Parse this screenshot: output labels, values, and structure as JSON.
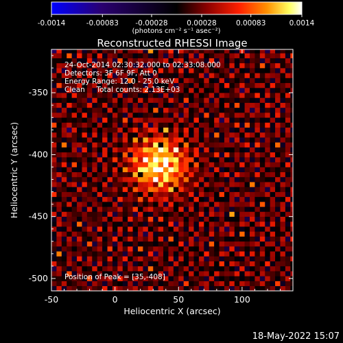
{
  "chart_data": {
    "type": "heatmap",
    "title": "Reconstructed RHESSI Image",
    "xlabel": "Heliocentric X (arcsec)",
    "ylabel": "Heliocentric Y (arcsec)",
    "xlim": [
      -50,
      140
    ],
    "ylim": [
      -510,
      -315
    ],
    "x_ticks": [
      "-50",
      "0",
      "50",
      "100"
    ],
    "x_tick_values": [
      -50,
      0,
      50,
      100
    ],
    "y_ticks": [
      "-350",
      "-400",
      "-450",
      "-500"
    ],
    "y_tick_values": [
      -350,
      -400,
      -450,
      -500
    ],
    "colorbar": {
      "min": -0.0014,
      "max": 0.0014,
      "ticks": [
        "-0.0014",
        "-0.00083",
        "-0.00028",
        "0.00028",
        "0.00083",
        "0.0014"
      ],
      "unit_label": "(photons cm⁻² s⁻¹ asec⁻²)",
      "colors": [
        "#0000ff",
        "#2a0070",
        "#000000",
        "#8a0000",
        "#ff2000",
        "#ff9000",
        "#ffff60",
        "#ffffff"
      ]
    },
    "peak": {
      "x": 35,
      "y": -408
    },
    "grid_spacing_arcsec": 4,
    "annotations": [
      "24-Oct-2014 02:30:32.000 to 02:33:08.000",
      "Detectors: 3F 6F 9F, Att 0",
      "Energy Range: 12.0 - 25.0 keV",
      "Clean     Total counts: 2.13E+03"
    ],
    "peak_label": "Position of Peak = [35,-408]"
  },
  "footer": {
    "timestamp": "18-May-2022 15:07"
  }
}
